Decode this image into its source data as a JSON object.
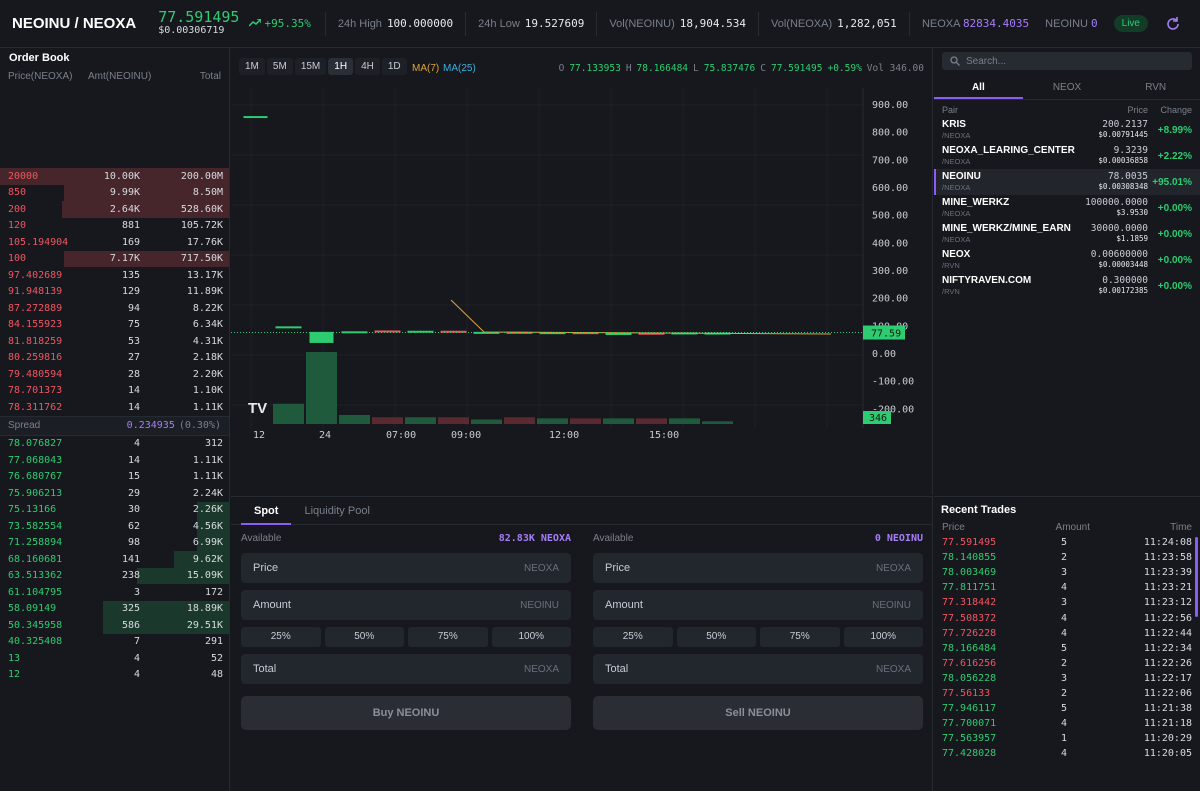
{
  "header": {
    "pair": "NEOINU / NEOXA",
    "price": "77.591495",
    "price_usd": "$0.00306719",
    "change": "+95.35%",
    "high_label": "24h High",
    "high": "100.000000",
    "low_label": "24h Low",
    "low": "19.527609",
    "vol1_label": "Vol(NEOINU)",
    "vol1": "18,904.534",
    "vol2_label": "Vol(NEOXA)",
    "vol2": "1,282,051",
    "bal1_label": "NEOXA",
    "bal1": "82834.4035",
    "bal2_label": "NEOINU",
    "bal2": "0",
    "live": "Live"
  },
  "orderbook": {
    "title": "Order Book",
    "col_price": "Price(NEOXA)",
    "col_amt": "Amt(NEOINU)",
    "col_total": "Total",
    "asks": [
      {
        "price": "20000",
        "amount": "10.00K",
        "total": "200.00M",
        "depth": 1.0
      },
      {
        "price": "850",
        "amount": "9.99K",
        "total": "8.50M",
        "depth": 0.72
      },
      {
        "price": "200",
        "amount": "2.64K",
        "total": "528.60K",
        "depth": 0.73
      },
      {
        "price": "120",
        "amount": "881",
        "total": "105.72K",
        "depth": 0
      },
      {
        "price": "105.194904",
        "amount": "169",
        "total": "17.76K",
        "depth": 0
      },
      {
        "price": "100",
        "amount": "7.17K",
        "total": "717.50K",
        "depth": 0.72
      },
      {
        "price": "97.402689",
        "amount": "135",
        "total": "13.17K",
        "depth": 0
      },
      {
        "price": "91.948139",
        "amount": "129",
        "total": "11.89K",
        "depth": 0
      },
      {
        "price": "87.272889",
        "amount": "94",
        "total": "8.22K",
        "depth": 0
      },
      {
        "price": "84.155923",
        "amount": "75",
        "total": "6.34K",
        "depth": 0
      },
      {
        "price": "81.818259",
        "amount": "53",
        "total": "4.31K",
        "depth": 0
      },
      {
        "price": "80.259816",
        "amount": "27",
        "total": "2.18K",
        "depth": 0
      },
      {
        "price": "79.480594",
        "amount": "28",
        "total": "2.20K",
        "depth": 0
      },
      {
        "price": "78.701373",
        "amount": "14",
        "total": "1.10K",
        "depth": 0
      },
      {
        "price": "78.311762",
        "amount": "14",
        "total": "1.11K",
        "depth": 0
      }
    ],
    "spread_label": "Spread",
    "spread": "0.234935",
    "spread_pct": "(0.30%)",
    "bids": [
      {
        "price": "78.076827",
        "amount": "4",
        "total": "312",
        "depth": 0
      },
      {
        "price": "77.068043",
        "amount": "14",
        "total": "1.11K",
        "depth": 0
      },
      {
        "price": "76.680767",
        "amount": "15",
        "total": "1.11K",
        "depth": 0
      },
      {
        "price": "75.906213",
        "amount": "29",
        "total": "2.24K",
        "depth": 0
      },
      {
        "price": "75.13166",
        "amount": "30",
        "total": "2.26K",
        "depth": 0.14
      },
      {
        "price": "73.582554",
        "amount": "62",
        "total": "4.56K",
        "depth": 0.14
      },
      {
        "price": "71.258894",
        "amount": "98",
        "total": "6.99K",
        "depth": 0.14
      },
      {
        "price": "68.160681",
        "amount": "141",
        "total": "9.62K",
        "depth": 0.24
      },
      {
        "price": "63.513362",
        "amount": "238",
        "total": "15.09K",
        "depth": 0.4
      },
      {
        "price": "61.104795",
        "amount": "3",
        "total": "172",
        "depth": 0
      },
      {
        "price": "58.09149",
        "amount": "325",
        "total": "18.89K",
        "depth": 0.55
      },
      {
        "price": "50.345958",
        "amount": "586",
        "total": "29.51K",
        "depth": 0.55
      },
      {
        "price": "40.325408",
        "amount": "7",
        "total": "291",
        "depth": 0
      },
      {
        "price": "13",
        "amount": "4",
        "total": "52",
        "depth": 0
      },
      {
        "price": "12",
        "amount": "4",
        "total": "48",
        "depth": 0
      }
    ]
  },
  "chart": {
    "timeframes": [
      "1M",
      "5M",
      "15M",
      "1H",
      "4H",
      "1D"
    ],
    "active_tf": "1H",
    "ma7": "MA(7)",
    "ma25": "MA(25)",
    "o_label": "O",
    "o": "77.133953",
    "h_label": "H",
    "h": "78.166484",
    "l_label": "L",
    "l": "75.837476",
    "c_label": "C",
    "c": "77.591495",
    "chg": "+0.59%",
    "vol": "Vol 346.00",
    "logo": "TV"
  },
  "chart_data": {
    "type": "candlestick",
    "price_axis": [
      "900.00",
      "800.00",
      "700.00",
      "600.00",
      "500.00",
      "400.00",
      "300.00",
      "200.00",
      "100.00",
      "0.00",
      "-100.00",
      "-200.00"
    ],
    "time_axis": [
      "12",
      "24",
      "07:00",
      "09:00",
      "12:00",
      "15:00"
    ],
    "last_price_tag": "77.59",
    "last_volume_tag": "346",
    "candles": [
      {
        "o": 860,
        "c": 860,
        "h": 860,
        "l": 860,
        "up": true,
        "vol": 0
      },
      {
        "o": 100,
        "c": 100,
        "h": 100,
        "l": 100,
        "up": true,
        "vol": 90
      },
      {
        "o": 40,
        "c": 80,
        "h": 80,
        "l": 40,
        "up": true,
        "vol": 320
      },
      {
        "o": 78,
        "c": 82,
        "h": 82,
        "l": 78,
        "up": true,
        "vol": 40
      },
      {
        "o": 85,
        "c": 78,
        "h": 85,
        "l": 78,
        "up": false,
        "vol": 30
      },
      {
        "o": 80,
        "c": 84,
        "h": 84,
        "l": 80,
        "up": true,
        "vol": 30
      },
      {
        "o": 84,
        "c": 77,
        "h": 84,
        "l": 77,
        "up": false,
        "vol": 30
      },
      {
        "o": 78,
        "c": 80,
        "h": 80,
        "l": 78,
        "up": true,
        "vol": 20
      },
      {
        "o": 80,
        "c": 74,
        "h": 80,
        "l": 74,
        "up": false,
        "vol": 30
      },
      {
        "o": 76,
        "c": 79,
        "h": 79,
        "l": 76,
        "up": true,
        "vol": 25
      },
      {
        "o": 79,
        "c": 76,
        "h": 79,
        "l": 76,
        "up": false,
        "vol": 25
      },
      {
        "o": 74,
        "c": 76,
        "h": 76,
        "l": 74,
        "up": true,
        "vol": 25
      },
      {
        "o": 77,
        "c": 74,
        "h": 77,
        "l": 74,
        "up": false,
        "vol": 25
      },
      {
        "o": 75,
        "c": 78,
        "h": 78,
        "l": 75,
        "up": true,
        "vol": 25
      },
      {
        "o": 77,
        "c": 77.6,
        "h": 78,
        "l": 76,
        "up": true,
        "vol": 12
      }
    ]
  },
  "trade": {
    "tabs": [
      "Spot",
      "Liquidity Pool"
    ],
    "available_label": "Available",
    "buy": {
      "available": "82.83K NEOXA",
      "price_label": "Price",
      "price_unit": "NEOXA",
      "amount_label": "Amount",
      "amount_unit": "NEOINU",
      "total_label": "Total",
      "total_unit": "NEOXA",
      "button": "Buy NEOINU"
    },
    "sell": {
      "available": "0 NEOINU",
      "price_label": "Price",
      "price_unit": "NEOXA",
      "amount_label": "Amount",
      "amount_unit": "NEOINU",
      "total_label": "Total",
      "total_unit": "NEOXA",
      "button": "Sell NEOINU"
    },
    "pcts": [
      "25%",
      "50%",
      "75%",
      "100%"
    ]
  },
  "markets": {
    "search_placeholder": "Search...",
    "tabs": [
      "All",
      "NEOX",
      "RVN"
    ],
    "col_pair": "Pair",
    "col_price": "Price",
    "col_change": "Change",
    "rows": [
      {
        "name": "KRIS",
        "quote": "/NEOXA",
        "price": "200.2137",
        "usd": "$0.00791445",
        "change": "+8.99%"
      },
      {
        "name": "NEOXA_LEARING_CENTER",
        "quote": "/NEOXA",
        "price": "9.3239",
        "usd": "$0.00036858",
        "change": "+2.22%"
      },
      {
        "name": "NEOINU",
        "quote": "/NEOXA",
        "price": "78.0035",
        "usd": "$0.00308348",
        "change": "+95.01%"
      },
      {
        "name": "MINE_WERKZ",
        "quote": "/NEOXA",
        "price": "100000.0000",
        "usd": "$3.9530",
        "change": "+0.00%"
      },
      {
        "name": "MINE_WERKZ/MINE_EARN",
        "quote": "/NEOXA",
        "price": "30000.0000",
        "usd": "$1.1859",
        "change": "+0.00%"
      },
      {
        "name": "NEOX",
        "quote": "/RVN",
        "price": "0.00600000",
        "usd": "$0.00003448",
        "change": "+0.00%"
      },
      {
        "name": "NIFTYRAVEN.COM",
        "quote": "/RVN",
        "price": "0.300000",
        "usd": "$0.00172385",
        "change": "+0.00%"
      }
    ]
  },
  "recent": {
    "title": "Recent Trades",
    "col_price": "Price",
    "col_amount": "Amount",
    "col_time": "Time",
    "rows": [
      {
        "price": "77.591495",
        "amount": "5",
        "time": "11:24:08",
        "side": "sell"
      },
      {
        "price": "78.140855",
        "amount": "2",
        "time": "11:23:58",
        "side": "buy"
      },
      {
        "price": "78.003469",
        "amount": "3",
        "time": "11:23:39",
        "side": "buy"
      },
      {
        "price": "77.811751",
        "amount": "4",
        "time": "11:23:21",
        "side": "buy"
      },
      {
        "price": "77.318442",
        "amount": "3",
        "time": "11:23:12",
        "side": "sell"
      },
      {
        "price": "77.508372",
        "amount": "4",
        "time": "11:22:56",
        "side": "sell"
      },
      {
        "price": "77.726228",
        "amount": "4",
        "time": "11:22:44",
        "side": "sell"
      },
      {
        "price": "78.166484",
        "amount": "5",
        "time": "11:22:34",
        "side": "buy"
      },
      {
        "price": "77.616256",
        "amount": "2",
        "time": "11:22:26",
        "side": "sell"
      },
      {
        "price": "78.056228",
        "amount": "3",
        "time": "11:22:17",
        "side": "buy"
      },
      {
        "price": "77.56133",
        "amount": "2",
        "time": "11:22:06",
        "side": "sell"
      },
      {
        "price": "77.946117",
        "amount": "5",
        "time": "11:21:38",
        "side": "buy"
      },
      {
        "price": "77.700071",
        "amount": "4",
        "time": "11:21:18",
        "side": "buy"
      },
      {
        "price": "77.563957",
        "amount": "1",
        "time": "11:20:29",
        "side": "buy"
      },
      {
        "price": "77.428028",
        "amount": "4",
        "time": "11:20:05",
        "side": "buy"
      }
    ]
  },
  "colors": {
    "up": "#2ecc71",
    "down": "#f25561",
    "accent": "#8b5cf6",
    "bg": "#16181d"
  }
}
